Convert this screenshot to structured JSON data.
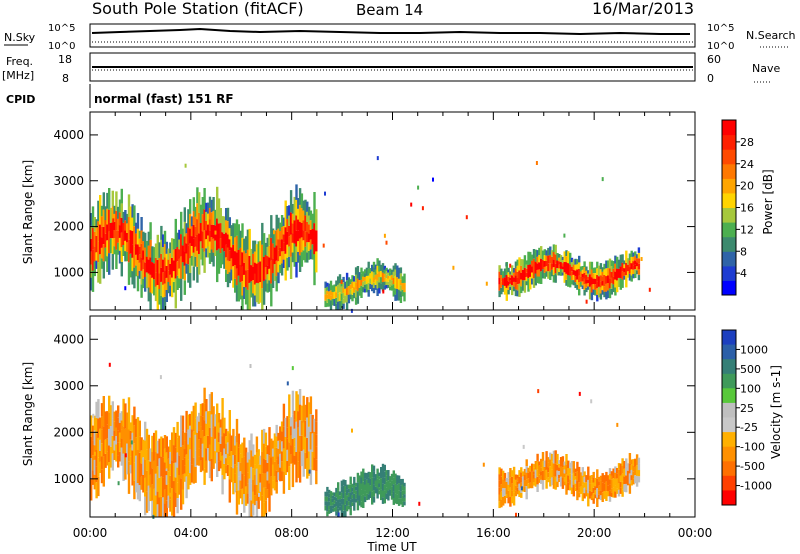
{
  "header": {
    "station": "South Pole Station (fitACF)",
    "beam": "Beam 14",
    "date": "16/Mar/2013"
  },
  "status_panels": {
    "nsky_label": "N.Sky",
    "nsky_ticks": [
      "10^5",
      "10^0"
    ],
    "nsearch_label": "N.Search",
    "freq_label": "Freq.",
    "freq_unit": "[MHz]",
    "freq_ticks": [
      "18",
      "8"
    ],
    "nave_label": "Nave",
    "nave_ticks": [
      "60",
      "0"
    ],
    "cpid_label": "CPID",
    "cpid_value": "normal (fast) 151 RF"
  },
  "chart_data": [
    {
      "type": "heatmap",
      "title": "",
      "quantity": "Power",
      "ylabel": "Slant Range [km]",
      "xlabel": "Time UT",
      "x_ticks": [
        "00:00",
        "04:00",
        "08:00",
        "12:00",
        "16:00",
        "20:00",
        "00:00"
      ],
      "y_ticks": [
        "1000",
        "2000",
        "3000",
        "4000"
      ],
      "xlim_hours": [
        0,
        24
      ],
      "ylim_km": [
        180,
        4500
      ],
      "colorbar": {
        "label": "Power [dB]",
        "ticks": [
          "4",
          "8",
          "12",
          "16",
          "20",
          "24",
          "28"
        ],
        "colors": [
          "#0000ff",
          "#1e3cd2",
          "#2f64a8",
          "#3c8a6e",
          "#4caf50",
          "#a6c83c",
          "#ffd400",
          "#ffa500",
          "#ff7800",
          "#ff4a00",
          "#ff2000",
          "#ff0000"
        ]
      },
      "echo_regions": [
        {
          "t_start": 0.0,
          "t_end": 9.0,
          "r_low": 500,
          "r_high": 2400,
          "level": "high"
        },
        {
          "t_start": 9.3,
          "t_end": 12.5,
          "r_low": 300,
          "r_high": 1100,
          "level": "medium"
        },
        {
          "t_start": 16.2,
          "t_end": 21.8,
          "r_low": 600,
          "r_high": 1400,
          "level": "high"
        }
      ]
    },
    {
      "type": "heatmap",
      "title": "",
      "quantity": "Velocity",
      "ylabel": "Slant Range [km]",
      "xlabel": "Time UT",
      "x_ticks": [
        "00:00",
        "04:00",
        "08:00",
        "12:00",
        "16:00",
        "20:00",
        "00:00"
      ],
      "y_ticks": [
        "1000",
        "2000",
        "3000",
        "4000"
      ],
      "xlim_hours": [
        0,
        24
      ],
      "ylim_km": [
        180,
        4500
      ],
      "colorbar": {
        "label": "Velocity [m s-1]",
        "ticks": [
          "1000",
          "500",
          "100",
          "25",
          "-25",
          "-100",
          "-500",
          "-1000"
        ],
        "colors": [
          "#1c3fbf",
          "#2b5fa8",
          "#357f76",
          "#3f9a5a",
          "#58c83a",
          "#bfbfbf",
          "#c8c8c8",
          "#ffb000",
          "#ff9000",
          "#ff7000",
          "#ff4000",
          "#ff0000"
        ]
      },
      "echo_regions": [
        {
          "t_start": 0.0,
          "t_end": 9.0,
          "r_low": 500,
          "r_high": 2400,
          "dominant": "negative"
        },
        {
          "t_start": 9.3,
          "t_end": 12.5,
          "r_low": 300,
          "r_high": 1100,
          "dominant": "positive"
        },
        {
          "t_start": 16.2,
          "t_end": 21.8,
          "r_low": 600,
          "r_high": 1400,
          "dominant": "negative"
        }
      ]
    }
  ]
}
